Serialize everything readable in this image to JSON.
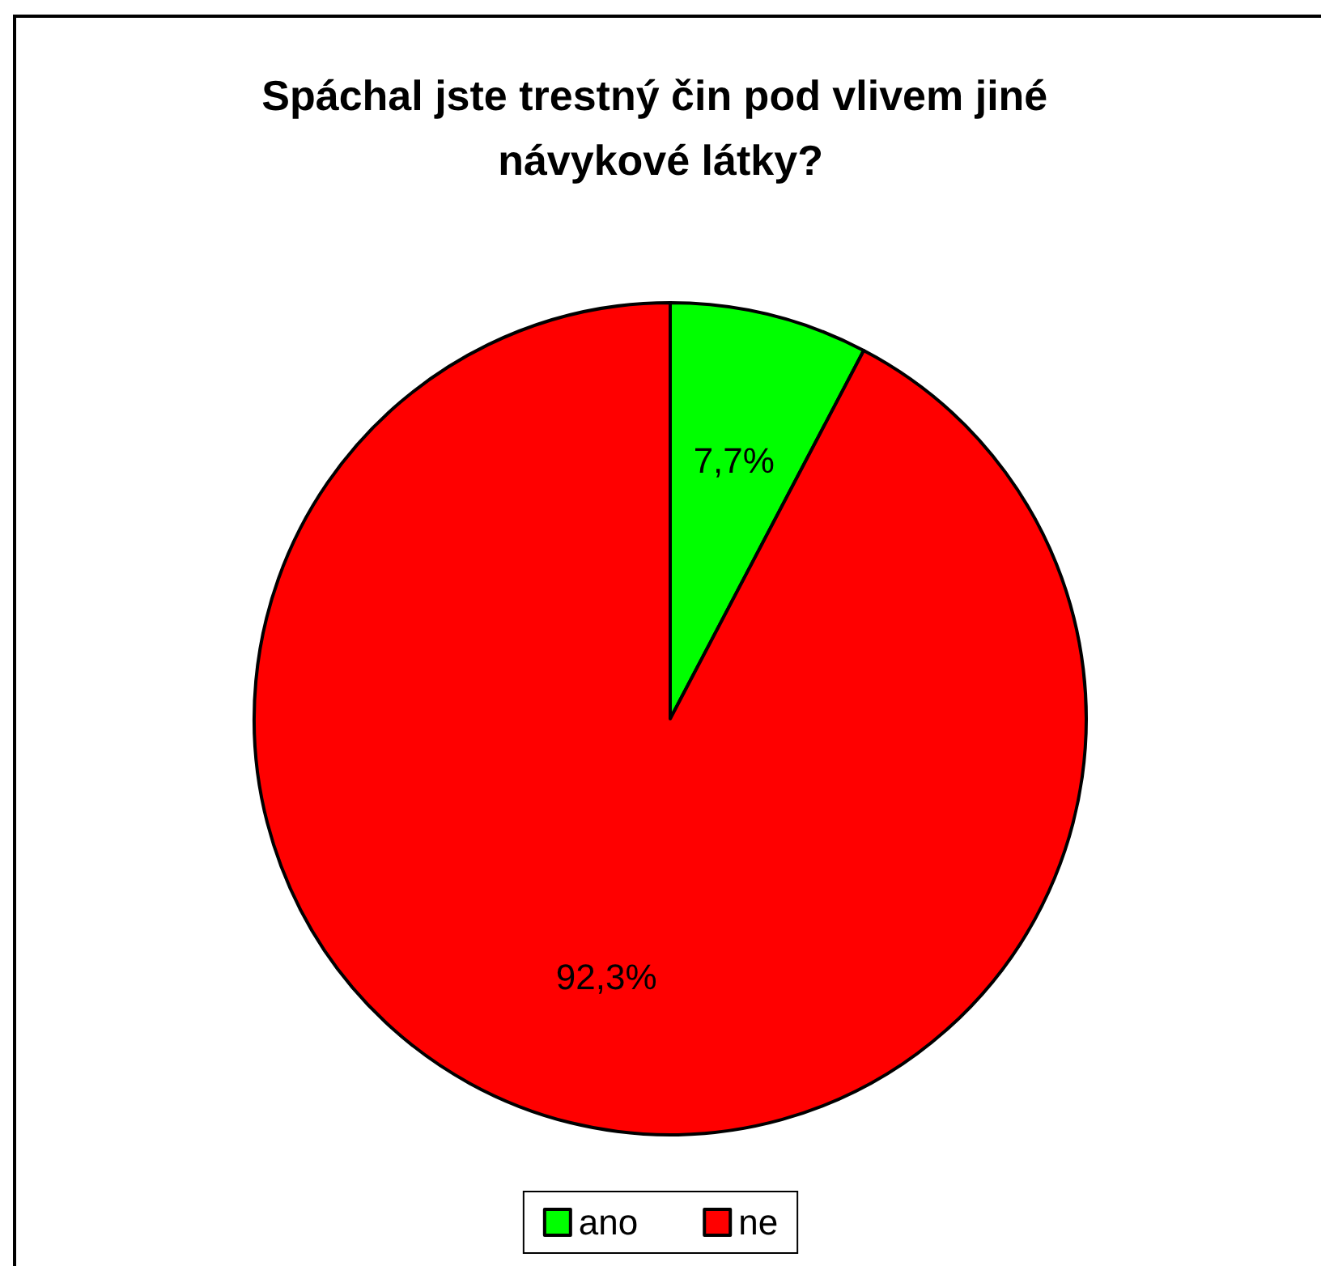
{
  "chart_data": {
    "type": "pie",
    "title": "Spáchal jste trestný čin pod vlivem jiné návykové látky?",
    "categories": [
      "ano",
      "ne"
    ],
    "values": [
      7.7,
      92.3
    ],
    "colors": [
      "#00ff00",
      "#ff0000"
    ],
    "value_labels": [
      "7,7%",
      "92,3%"
    ],
    "legend": "bottom"
  }
}
